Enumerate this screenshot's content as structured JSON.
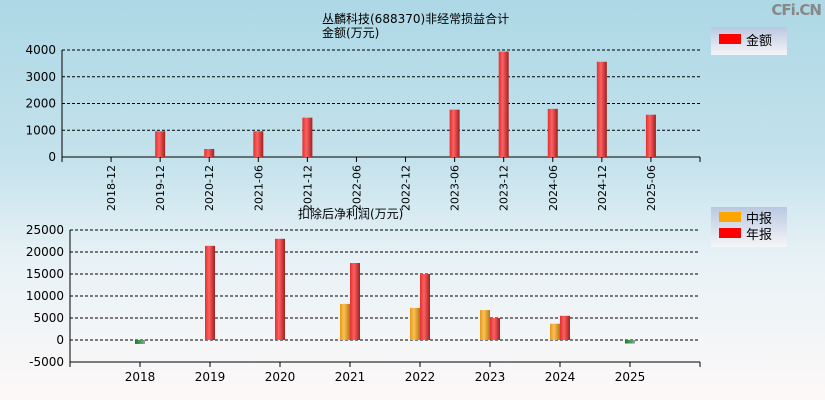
{
  "watermark": "CFi.CN",
  "chart_data": [
    {
      "type": "bar",
      "title": "丛麟科技(688370)非经常损益合计",
      "subtitle": "金额(万元)",
      "categories": [
        "2018-12",
        "2019-12",
        "2020-12",
        "2021-06",
        "2021-12",
        "2022-06",
        "2022-12",
        "2023-06",
        "2023-12",
        "2024-06",
        "2024-12",
        "2025-06"
      ],
      "series": [
        {
          "name": "金额",
          "color": "#ff0000",
          "values": [
            0,
            960,
            300,
            960,
            1470,
            0,
            0,
            1770,
            3940,
            1800,
            3560,
            1580
          ]
        }
      ],
      "yticks": [
        0,
        1000,
        2000,
        3000,
        4000
      ],
      "ylim": [
        0,
        4000
      ],
      "grid": true,
      "legend": "top-right"
    },
    {
      "type": "bar",
      "title": "扣除后净利润(万元)",
      "categories": [
        "2018",
        "2019",
        "2020",
        "2021",
        "2022",
        "2023",
        "2024",
        "2025"
      ],
      "series": [
        {
          "name": "中报",
          "color": "#ffa500",
          "values": [
            null,
            null,
            null,
            8200,
            7300,
            6800,
            3700,
            -800
          ]
        },
        {
          "name": "年报",
          "color": "#ff0000",
          "values": [
            -900,
            21400,
            23000,
            17500,
            15000,
            5000,
            5500,
            null
          ]
        }
      ],
      "negative_color": "#2e8b3a",
      "yticks": [
        -5000,
        0,
        5000,
        10000,
        15000,
        20000,
        25000
      ],
      "ylim": [
        -5000,
        25000
      ],
      "grid": true,
      "legend": "top-right"
    }
  ]
}
